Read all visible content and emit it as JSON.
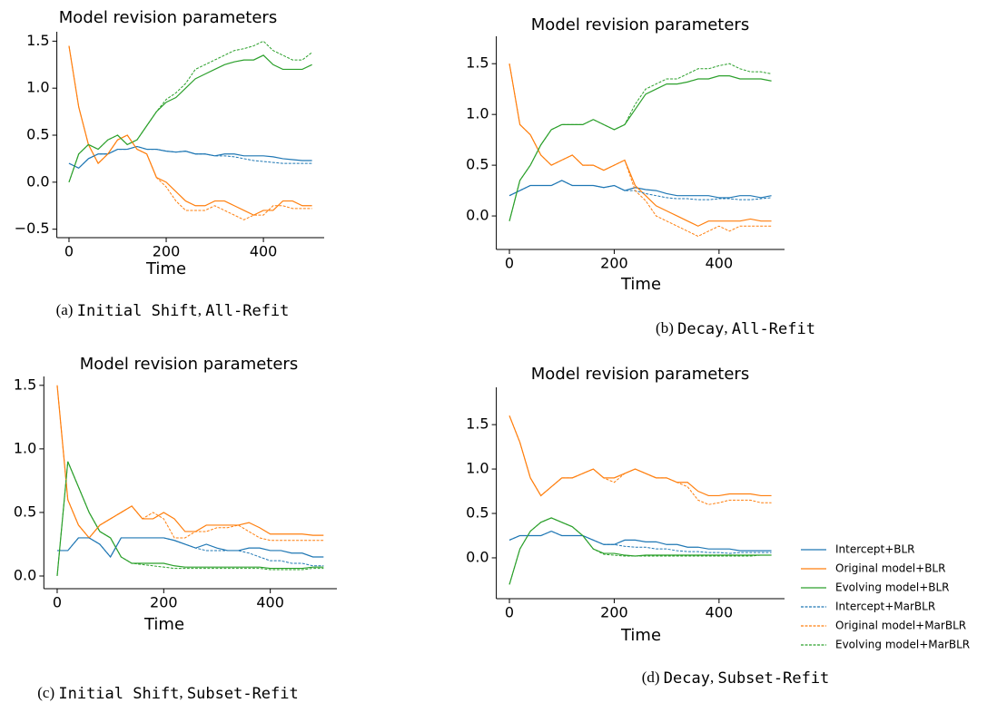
{
  "chart_data": [
    {
      "type": "line",
      "title": "Model revision parameters",
      "xlabel": "Time",
      "caption": [
        {
          "text": "(a) ",
          "mono": false
        },
        {
          "text": "Initial Shift",
          "mono": true
        },
        {
          "text": ", ",
          "mono": false
        },
        {
          "text": "All-Refit",
          "mono": true
        }
      ],
      "xlim": [
        -25,
        525
      ],
      "ylim": [
        -0.59,
        1.6
      ],
      "xticks": [
        0,
        200,
        400
      ],
      "yticks": [
        {
          "value": -0.5,
          "label": "−0.5"
        },
        {
          "value": 0,
          "label": "0.0"
        },
        0.5,
        {
          "value": 1,
          "label": "1.0"
        },
        1.5
      ],
      "x": [
        0,
        20,
        40,
        60,
        80,
        100,
        120,
        140,
        160,
        180,
        200,
        220,
        240,
        260,
        280,
        300,
        320,
        340,
        360,
        380,
        400,
        420,
        440,
        460,
        480,
        500
      ],
      "series": [
        {
          "values": [
            0.2,
            0.15,
            0.25,
            0.3,
            0.3,
            0.35,
            0.35,
            0.38,
            0.35,
            0.35,
            0.33,
            0.32,
            0.33,
            0.3,
            0.3,
            0.28,
            0.3,
            0.3,
            0.28,
            0.28,
            0.28,
            0.27,
            0.25,
            0.24,
            0.23,
            0.23
          ]
        },
        {
          "values": [
            1.45,
            0.8,
            0.4,
            0.2,
            0.3,
            0.45,
            0.5,
            0.35,
            0.3,
            0.05,
            0.0,
            -0.1,
            -0.2,
            -0.25,
            -0.25,
            -0.2,
            -0.2,
            -0.25,
            -0.3,
            -0.35,
            -0.3,
            -0.3,
            -0.2,
            -0.2,
            -0.25,
            -0.25
          ]
        },
        {
          "values": [
            0.0,
            0.3,
            0.4,
            0.35,
            0.45,
            0.5,
            0.4,
            0.45,
            0.6,
            0.75,
            0.85,
            0.9,
            1.0,
            1.1,
            1.15,
            1.2,
            1.25,
            1.28,
            1.3,
            1.3,
            1.35,
            1.25,
            1.2,
            1.2,
            1.2,
            1.25
          ]
        },
        {
          "values": [
            0.2,
            0.15,
            0.25,
            0.3,
            0.3,
            0.35,
            0.35,
            0.38,
            0.35,
            0.35,
            0.33,
            0.32,
            0.33,
            0.3,
            0.3,
            0.28,
            0.28,
            0.27,
            0.25,
            0.23,
            0.22,
            0.21,
            0.2,
            0.2,
            0.2,
            0.2
          ]
        },
        {
          "values": [
            1.45,
            0.8,
            0.4,
            0.2,
            0.3,
            0.45,
            0.5,
            0.35,
            0.3,
            0.05,
            -0.05,
            -0.2,
            -0.3,
            -0.3,
            -0.3,
            -0.25,
            -0.3,
            -0.35,
            -0.4,
            -0.35,
            -0.35,
            -0.25,
            -0.25,
            -0.28,
            -0.28,
            -0.28
          ]
        },
        {
          "values": [
            0.0,
            0.3,
            0.4,
            0.35,
            0.45,
            0.5,
            0.4,
            0.45,
            0.6,
            0.75,
            0.88,
            0.95,
            1.05,
            1.2,
            1.25,
            1.3,
            1.35,
            1.4,
            1.42,
            1.45,
            1.5,
            1.4,
            1.35,
            1.3,
            1.3,
            1.38
          ]
        }
      ]
    },
    {
      "type": "line",
      "title": "Model revision parameters",
      "xlabel": "Time",
      "caption": [
        {
          "text": "(b) ",
          "mono": false
        },
        {
          "text": "Decay",
          "mono": true
        },
        {
          "text": ", ",
          "mono": false
        },
        {
          "text": "All-Refit",
          "mono": true
        }
      ],
      "xlim": [
        -25,
        525
      ],
      "ylim": [
        -0.33,
        1.77
      ],
      "xticks": [
        0,
        200,
        400
      ],
      "yticks": [
        {
          "value": 0,
          "label": "0.0"
        },
        0.5,
        {
          "value": 1,
          "label": "1.0"
        },
        1.5
      ],
      "x": [
        0,
        20,
        40,
        60,
        80,
        100,
        120,
        140,
        160,
        180,
        200,
        220,
        240,
        260,
        280,
        300,
        320,
        340,
        360,
        380,
        400,
        420,
        440,
        460,
        480,
        500
      ],
      "series": [
        {
          "values": [
            0.2,
            0.25,
            0.3,
            0.3,
            0.3,
            0.35,
            0.3,
            0.3,
            0.3,
            0.28,
            0.3,
            0.25,
            0.28,
            0.26,
            0.25,
            0.22,
            0.2,
            0.2,
            0.2,
            0.2,
            0.18,
            0.18,
            0.2,
            0.2,
            0.18,
            0.2
          ]
        },
        {
          "values": [
            1.5,
            0.9,
            0.8,
            0.6,
            0.5,
            0.55,
            0.6,
            0.5,
            0.5,
            0.45,
            0.5,
            0.55,
            0.3,
            0.2,
            0.1,
            0.05,
            0.0,
            -0.05,
            -0.1,
            -0.05,
            -0.05,
            -0.05,
            -0.05,
            -0.03,
            -0.05,
            -0.05
          ]
        },
        {
          "values": [
            -0.05,
            0.35,
            0.5,
            0.7,
            0.85,
            0.9,
            0.9,
            0.9,
            0.95,
            0.9,
            0.85,
            0.9,
            1.05,
            1.2,
            1.25,
            1.3,
            1.3,
            1.32,
            1.35,
            1.35,
            1.38,
            1.38,
            1.35,
            1.35,
            1.35,
            1.33
          ]
        },
        {
          "values": [
            0.2,
            0.25,
            0.3,
            0.3,
            0.3,
            0.35,
            0.3,
            0.3,
            0.3,
            0.28,
            0.3,
            0.25,
            0.25,
            0.22,
            0.2,
            0.18,
            0.17,
            0.17,
            0.16,
            0.16,
            0.17,
            0.17,
            0.16,
            0.16,
            0.17,
            0.18
          ]
        },
        {
          "values": [
            1.5,
            0.9,
            0.8,
            0.6,
            0.5,
            0.55,
            0.6,
            0.5,
            0.5,
            0.45,
            0.5,
            0.55,
            0.25,
            0.15,
            0.0,
            -0.05,
            -0.1,
            -0.15,
            -0.2,
            -0.15,
            -0.1,
            -0.15,
            -0.1,
            -0.1,
            -0.1,
            -0.1
          ]
        },
        {
          "values": [
            -0.05,
            0.35,
            0.5,
            0.7,
            0.85,
            0.9,
            0.9,
            0.9,
            0.95,
            0.9,
            0.85,
            0.9,
            1.1,
            1.25,
            1.3,
            1.35,
            1.35,
            1.4,
            1.45,
            1.45,
            1.48,
            1.5,
            1.45,
            1.42,
            1.42,
            1.4
          ]
        }
      ]
    },
    {
      "type": "line",
      "title": "Model revision parameters",
      "xlabel": "Time",
      "caption": [
        {
          "text": "(c) ",
          "mono": false
        },
        {
          "text": "Initial Shift",
          "mono": true
        },
        {
          "text": ", ",
          "mono": false
        },
        {
          "text": "Subset-Refit",
          "mono": true
        }
      ],
      "xlim": [
        -25,
        525
      ],
      "ylim": [
        -0.1,
        1.57
      ],
      "xticks": [
        0,
        200,
        400
      ],
      "yticks": [
        {
          "value": 0,
          "label": "0.0"
        },
        0.5,
        {
          "value": 1,
          "label": "1.0"
        },
        1.5
      ],
      "x": [
        0,
        20,
        40,
        60,
        80,
        100,
        120,
        140,
        160,
        180,
        200,
        220,
        240,
        260,
        280,
        300,
        320,
        340,
        360,
        380,
        400,
        420,
        440,
        460,
        480,
        500
      ],
      "series": [
        {
          "values": [
            0.2,
            0.2,
            0.3,
            0.3,
            0.25,
            0.15,
            0.3,
            0.3,
            0.3,
            0.3,
            0.3,
            0.28,
            0.25,
            0.22,
            0.25,
            0.22,
            0.2,
            0.2,
            0.22,
            0.22,
            0.2,
            0.2,
            0.18,
            0.18,
            0.15,
            0.15
          ]
        },
        {
          "values": [
            1.5,
            0.6,
            0.4,
            0.3,
            0.4,
            0.45,
            0.5,
            0.55,
            0.45,
            0.45,
            0.5,
            0.45,
            0.35,
            0.35,
            0.4,
            0.4,
            0.4,
            0.4,
            0.42,
            0.38,
            0.33,
            0.33,
            0.33,
            0.33,
            0.32,
            0.32
          ]
        },
        {
          "values": [
            0.0,
            0.9,
            0.7,
            0.5,
            0.35,
            0.3,
            0.15,
            0.1,
            0.1,
            0.1,
            0.1,
            0.08,
            0.07,
            0.07,
            0.07,
            0.07,
            0.07,
            0.07,
            0.07,
            0.07,
            0.06,
            0.06,
            0.06,
            0.06,
            0.07,
            0.07
          ]
        },
        {
          "values": [
            0.2,
            0.2,
            0.3,
            0.3,
            0.25,
            0.15,
            0.3,
            0.3,
            0.3,
            0.3,
            0.3,
            0.28,
            0.25,
            0.22,
            0.2,
            0.2,
            0.2,
            0.2,
            0.18,
            0.15,
            0.12,
            0.12,
            0.1,
            0.1,
            0.08,
            0.08
          ]
        },
        {
          "values": [
            1.5,
            0.6,
            0.4,
            0.3,
            0.4,
            0.45,
            0.5,
            0.55,
            0.45,
            0.5,
            0.45,
            0.3,
            0.3,
            0.35,
            0.35,
            0.38,
            0.38,
            0.4,
            0.35,
            0.3,
            0.28,
            0.28,
            0.28,
            0.28,
            0.28,
            0.28
          ]
        },
        {
          "values": [
            0.0,
            0.9,
            0.7,
            0.5,
            0.35,
            0.3,
            0.15,
            0.1,
            0.09,
            0.08,
            0.07,
            0.06,
            0.06,
            0.06,
            0.06,
            0.06,
            0.06,
            0.06,
            0.06,
            0.06,
            0.05,
            0.05,
            0.05,
            0.05,
            0.06,
            0.06
          ]
        }
      ]
    },
    {
      "type": "line",
      "title": "Model revision parameters",
      "xlabel": "Time",
      "caption": [
        {
          "text": "(d) ",
          "mono": false
        },
        {
          "text": "Decay",
          "mono": true
        },
        {
          "text": ", ",
          "mono": false
        },
        {
          "text": "Subset-Refit",
          "mono": true
        }
      ],
      "xlim": [
        -25,
        525
      ],
      "ylim": [
        -0.46,
        1.92
      ],
      "xticks": [
        0,
        200,
        400
      ],
      "yticks": [
        {
          "value": 0,
          "label": "0.0"
        },
        0.5,
        {
          "value": 1,
          "label": "1.0"
        },
        1.5
      ],
      "x": [
        0,
        20,
        40,
        60,
        80,
        100,
        120,
        140,
        160,
        180,
        200,
        220,
        240,
        260,
        280,
        300,
        320,
        340,
        360,
        380,
        400,
        420,
        440,
        460,
        480,
        500
      ],
      "series": [
        {
          "values": [
            0.2,
            0.25,
            0.25,
            0.25,
            0.3,
            0.25,
            0.25,
            0.25,
            0.2,
            0.15,
            0.15,
            0.2,
            0.2,
            0.18,
            0.18,
            0.15,
            0.15,
            0.12,
            0.12,
            0.1,
            0.1,
            0.1,
            0.08,
            0.08,
            0.08,
            0.08
          ]
        },
        {
          "values": [
            1.6,
            1.3,
            0.9,
            0.7,
            0.8,
            0.9,
            0.9,
            0.95,
            1.0,
            0.9,
            0.9,
            0.95,
            1.0,
            0.95,
            0.9,
            0.9,
            0.85,
            0.85,
            0.75,
            0.7,
            0.7,
            0.72,
            0.72,
            0.72,
            0.7,
            0.7
          ]
        },
        {
          "values": [
            -0.3,
            0.1,
            0.3,
            0.4,
            0.45,
            0.4,
            0.35,
            0.25,
            0.1,
            0.05,
            0.05,
            0.03,
            0.02,
            0.03,
            0.03,
            0.03,
            0.03,
            0.03,
            0.03,
            0.03,
            0.03,
            0.03,
            0.03,
            0.03,
            0.03,
            0.03
          ]
        },
        {
          "values": [
            0.2,
            0.25,
            0.25,
            0.25,
            0.3,
            0.25,
            0.25,
            0.25,
            0.2,
            0.15,
            0.15,
            0.13,
            0.12,
            0.12,
            0.1,
            0.1,
            0.08,
            0.07,
            0.07,
            0.06,
            0.06,
            0.05,
            0.06,
            0.06,
            0.06,
            0.06
          ]
        },
        {
          "values": [
            1.6,
            1.3,
            0.9,
            0.7,
            0.8,
            0.9,
            0.9,
            0.95,
            1.0,
            0.9,
            0.85,
            0.95,
            1.0,
            0.95,
            0.9,
            0.9,
            0.85,
            0.8,
            0.65,
            0.6,
            0.62,
            0.65,
            0.65,
            0.65,
            0.62,
            0.62
          ]
        },
        {
          "values": [
            -0.3,
            0.1,
            0.3,
            0.4,
            0.45,
            0.4,
            0.35,
            0.25,
            0.1,
            0.04,
            0.03,
            0.02,
            0.02,
            0.02,
            0.02,
            0.02,
            0.02,
            0.02,
            0.02,
            0.02,
            0.02,
            0.02,
            0.02,
            0.02,
            0.03,
            0.03
          ]
        }
      ]
    }
  ],
  "legend": {
    "entries": [
      {
        "name": "Intercept+BLR",
        "color": "#1f77b4",
        "dashed": false
      },
      {
        "name": "Original model+BLR",
        "color": "#ff7f0e",
        "dashed": false
      },
      {
        "name": "Evolving model+BLR",
        "color": "#2ca02c",
        "dashed": false
      },
      {
        "name": "Intercept+MarBLR",
        "color": "#1f77b4",
        "dashed": true
      },
      {
        "name": "Original model+MarBLR",
        "color": "#ff7f0e",
        "dashed": true
      },
      {
        "name": "Evolving model+MarBLR",
        "color": "#2ca02c",
        "dashed": true
      }
    ]
  }
}
